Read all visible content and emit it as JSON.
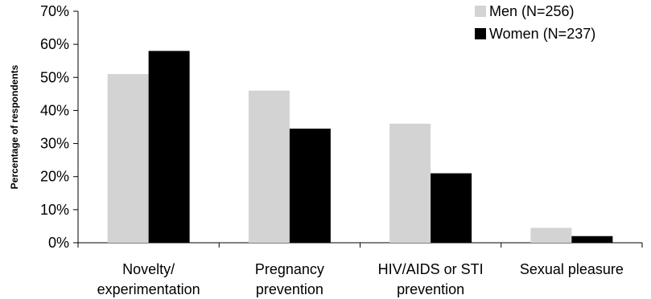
{
  "chart_data": {
    "type": "bar",
    "title": "",
    "xlabel": "",
    "ylabel": "Percentage of respondents",
    "ylim": [
      0,
      70
    ],
    "y_tick_step": 10,
    "y_tick_suffix": "%",
    "grid": false,
    "legend_position": "top-right",
    "categories": [
      [
        "Novelty/",
        "experimentation"
      ],
      [
        "Pregnancy",
        "prevention"
      ],
      [
        "HIV/AIDS or STI",
        "prevention"
      ],
      [
        "Sexual pleasure"
      ]
    ],
    "series": [
      {
        "name": "Men (N=256)",
        "color": "#d3d3d3",
        "values": [
          51,
          46,
          36,
          4.5
        ]
      },
      {
        "name": "Women (N=237)",
        "color": "#000000",
        "values": [
          58,
          34.5,
          21,
          2
        ]
      }
    ]
  }
}
